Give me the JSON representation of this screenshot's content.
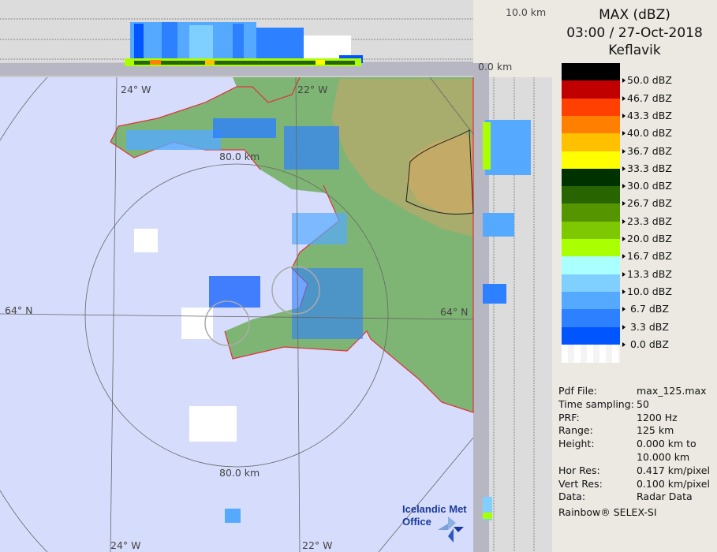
{
  "header": {
    "product": "MAX (dBZ)",
    "datetime": "03:00 / 27-Oct-2018",
    "site": "Keflavik"
  },
  "colors": {
    "sea": "#d6dcfb",
    "land": "#7fb574",
    "highland": "#b9a86a",
    "coastline": "#e0303a",
    "panel_bg": "#dcdcdc"
  },
  "scale": [
    {
      "label": "50.0 dBZ",
      "color": "#000000"
    },
    {
      "label": "46.7 dBZ",
      "color": "#c00000"
    },
    {
      "label": "43.3 dBZ",
      "color": "#ff4000"
    },
    {
      "label": "40.0 dBZ",
      "color": "#ff8000"
    },
    {
      "label": "36.7 dBZ",
      "color": "#ffc000"
    },
    {
      "label": "33.3 dBZ",
      "color": "#ffff00"
    },
    {
      "label": "30.0 dBZ",
      "color": "#003200"
    },
    {
      "label": "26.7 dBZ",
      "color": "#286400"
    },
    {
      "label": "23.3 dBZ",
      "color": "#559600"
    },
    {
      "label": "20.0 dBZ",
      "color": "#7dc800"
    },
    {
      "label": "16.7 dBZ",
      "color": "#aaff00"
    },
    {
      "label": "13.3 dBZ",
      "color": "#aaffff"
    },
    {
      "label": "10.0 dBZ",
      "color": "#80d0ff"
    },
    {
      "label": " 6.7 dBZ",
      "color": "#55aaff"
    },
    {
      "label": " 3.3 dBZ",
      "color": "#2d80ff"
    },
    {
      "label": " 0.0 dBZ",
      "color": "#0055ff"
    },
    {
      "label": "",
      "color": "#ffffff"
    }
  ],
  "info": [
    {
      "key": "Pdf File:",
      "value": "max_125.max"
    },
    {
      "key": "Time sampling:",
      "value": "50"
    },
    {
      "key": "PRF:",
      "value": "1200 Hz"
    },
    {
      "key": "Range:",
      "value": "125 km"
    },
    {
      "key": "Height:",
      "value": "0.000 km to"
    },
    {
      "key": "",
      "value": "10.000 km"
    },
    {
      "key": "Hor Res:",
      "value": "0.417 km/pixel"
    },
    {
      "key": "Vert Res:",
      "value": "0.100 km/pixel"
    },
    {
      "key": "Data:",
      "value": "Radar Data"
    }
  ],
  "footer": "Rainbow® SELEX-SI",
  "map": {
    "lon_labels": [
      "24° W",
      "22° W",
      "24° W",
      "22° W"
    ],
    "lat_labels": [
      "64° N",
      "64° N"
    ],
    "range_labels": [
      "80.0 km",
      "80.0 km"
    ],
    "height_labels": [
      "10.0 km",
      "0.0 km"
    ],
    "logo_text": [
      "Icelandic Met",
      "Office"
    ]
  }
}
